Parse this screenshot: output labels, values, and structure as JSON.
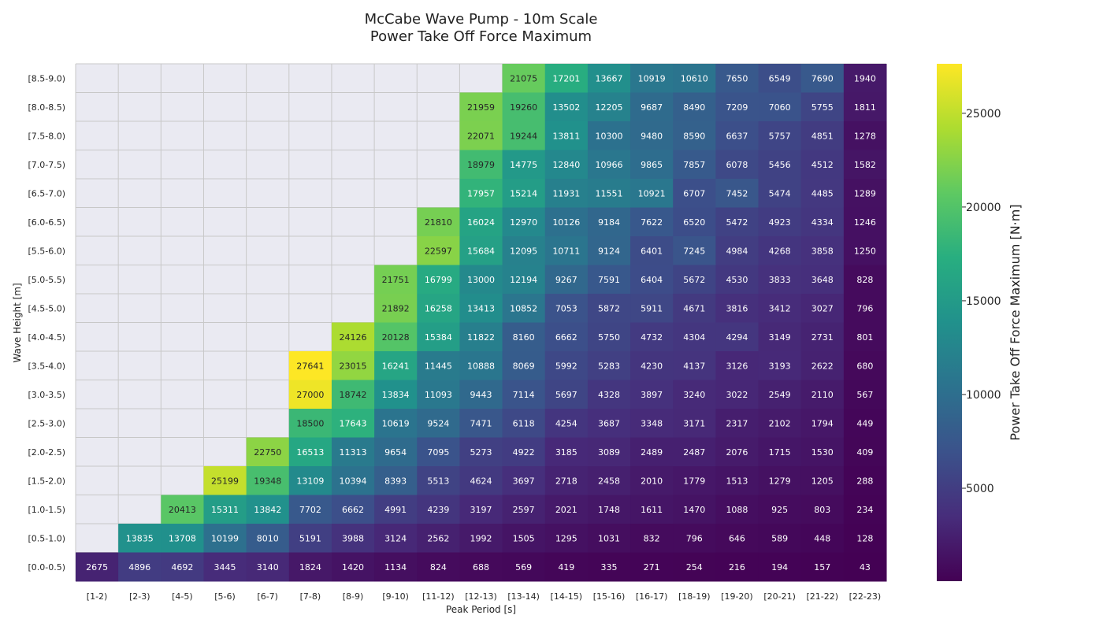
{
  "chart_data": {
    "type": "heatmap",
    "title": [
      "McCabe Wave Pump - 10m Scale",
      "Power Take Off Force Maximum"
    ],
    "xlabel": "Peak Period [s]",
    "ylabel": "Wave Height [m]",
    "x_categories": [
      "[1-2)",
      "[2-3)",
      "[4-5)",
      "[5-6)",
      "[6-7)",
      "[7-8)",
      "[8-9)",
      "[9-10)",
      "[11-12)",
      "[12-13)",
      "[13-14)",
      "[14-15)",
      "[15-16)",
      "[16-17)",
      "[18-19)",
      "[19-20)",
      "[20-21)",
      "[21-22)",
      "[22-23)"
    ],
    "y_categories": [
      "[8.5-9.0)",
      "[8.0-8.5)",
      "[7.5-8.0)",
      "[7.0-7.5)",
      "[6.5-7.0)",
      "[6.0-6.5)",
      "[5.5-6.0)",
      "[5.0-5.5)",
      "[4.5-5.0)",
      "[4.0-4.5)",
      "[3.5-4.0)",
      "[3.0-3.5)",
      "[2.5-3.0)",
      "[2.0-2.5)",
      "[1.5-2.0)",
      "[1.0-1.5)",
      "[0.5-1.0)",
      "[0.0-0.5)"
    ],
    "values": [
      [
        null,
        null,
        null,
        null,
        null,
        null,
        null,
        null,
        null,
        null,
        21075,
        17201,
        13667,
        10919,
        10610,
        7650,
        6549,
        7690,
        1940
      ],
      [
        null,
        null,
        null,
        null,
        null,
        null,
        null,
        null,
        null,
        21959,
        19260,
        13502,
        12205,
        9687,
        8490,
        7209,
        7060,
        5755,
        1811
      ],
      [
        null,
        null,
        null,
        null,
        null,
        null,
        null,
        null,
        null,
        22071,
        19244,
        13811,
        10300,
        9480,
        8590,
        6637,
        5757,
        4851,
        1278
      ],
      [
        null,
        null,
        null,
        null,
        null,
        null,
        null,
        null,
        null,
        18979,
        14775,
        12840,
        10966,
        9865,
        7857,
        6078,
        5456,
        4512,
        1582
      ],
      [
        null,
        null,
        null,
        null,
        null,
        null,
        null,
        null,
        null,
        17957,
        15214,
        11931,
        11551,
        10921,
        6707,
        7452,
        5474,
        4485,
        1289
      ],
      [
        null,
        null,
        null,
        null,
        null,
        null,
        null,
        null,
        21810,
        16024,
        12970,
        10126,
        9184,
        7622,
        6520,
        5472,
        4923,
        4334,
        1246
      ],
      [
        null,
        null,
        null,
        null,
        null,
        null,
        null,
        null,
        22597,
        15684,
        12095,
        10711,
        9124,
        6401,
        7245,
        4984,
        4268,
        3858,
        1250
      ],
      [
        null,
        null,
        null,
        null,
        null,
        null,
        null,
        21751,
        16799,
        13000,
        12194,
        9267,
        7591,
        6404,
        5672,
        4530,
        3833,
        3648,
        828
      ],
      [
        null,
        null,
        null,
        null,
        null,
        null,
        null,
        21892,
        16258,
        13413,
        10852,
        7053,
        5872,
        5911,
        4671,
        3816,
        3412,
        3027,
        796
      ],
      [
        null,
        null,
        null,
        null,
        null,
        null,
        24126,
        20128,
        15384,
        11822,
        8160,
        6662,
        5750,
        4732,
        4304,
        4294,
        3149,
        2731,
        801
      ],
      [
        null,
        null,
        null,
        null,
        null,
        27641,
        23015,
        16241,
        11445,
        10888,
        8069,
        5992,
        5283,
        4230,
        4137,
        3126,
        3193,
        2622,
        680
      ],
      [
        null,
        null,
        null,
        null,
        null,
        27000,
        18742,
        13834,
        11093,
        9443,
        7114,
        5697,
        4328,
        3897,
        3240,
        3022,
        2549,
        2110,
        567
      ],
      [
        null,
        null,
        null,
        null,
        null,
        18500,
        17643,
        10619,
        9524,
        7471,
        6118,
        4254,
        3687,
        3348,
        3171,
        2317,
        2102,
        1794,
        449
      ],
      [
        null,
        null,
        null,
        null,
        22750,
        16513,
        11313,
        9654,
        7095,
        5273,
        4922,
        3185,
        3089,
        2489,
        2487,
        2076,
        1715,
        1530,
        409
      ],
      [
        null,
        null,
        null,
        25199,
        19348,
        13109,
        10394,
        8393,
        5513,
        4624,
        3697,
        2718,
        2458,
        2010,
        1779,
        1513,
        1279,
        1205,
        288
      ],
      [
        null,
        null,
        20413,
        15311,
        13842,
        7702,
        6662,
        4991,
        4239,
        3197,
        2597,
        2021,
        1748,
        1611,
        1470,
        1088,
        925,
        803,
        234
      ],
      [
        null,
        13835,
        13708,
        10199,
        8010,
        5191,
        3988,
        3124,
        2562,
        1992,
        1505,
        1295,
        1031,
        832,
        796,
        646,
        589,
        448,
        128
      ],
      [
        2675,
        4896,
        4692,
        3445,
        3140,
        1824,
        1420,
        1134,
        824,
        688,
        569,
        419,
        335,
        271,
        254,
        216,
        194,
        157,
        43
      ]
    ],
    "colorbar": {
      "label": "Power Take Off Force Maximum [N·m]",
      "ticks": [
        5000,
        10000,
        15000,
        20000,
        25000
      ],
      "range": [
        43,
        27641
      ],
      "colormap": "viridis"
    },
    "grid": true,
    "missing_color": "#eaeaf2"
  }
}
